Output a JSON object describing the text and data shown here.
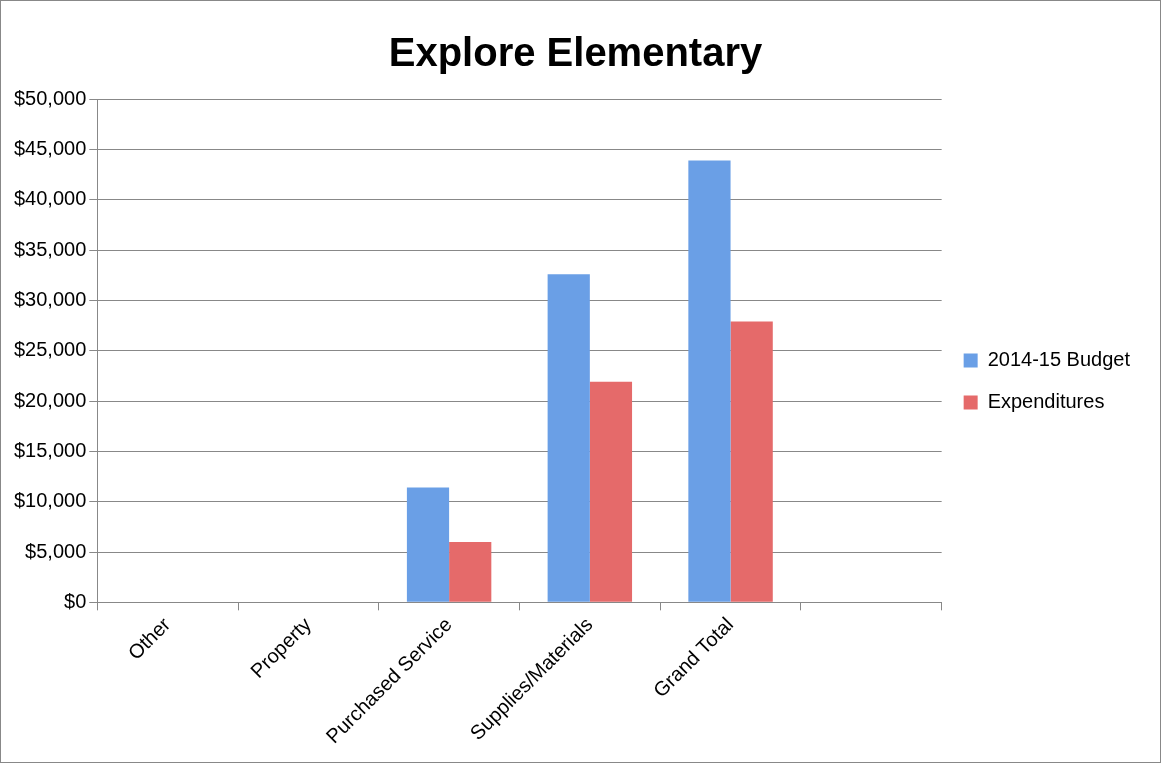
{
  "chart_data": {
    "type": "bar",
    "title": "Explore Elementary",
    "categories": [
      "Other",
      "Property",
      "Purchased Service",
      "Supplies/Materials",
      "Grand Total",
      null
    ],
    "series": [
      {
        "name": "2014-15 Budget",
        "color": "#6a9fe6",
        "values": [
          0,
          0,
          11400,
          32600,
          43900,
          null
        ]
      },
      {
        "name": "Expenditures",
        "color": "#e56a6a",
        "values": [
          0,
          0,
          6000,
          21900,
          27900,
          null
        ]
      }
    ],
    "ylim": [
      0,
      50000
    ],
    "yticks": [
      {
        "value": 0,
        "label": "$0"
      },
      {
        "value": 5000,
        "label": "$5,000"
      },
      {
        "value": 10000,
        "label": "$10,000"
      },
      {
        "value": 15000,
        "label": "$15,000"
      },
      {
        "value": 20000,
        "label": "$20,000"
      },
      {
        "value": 25000,
        "label": "$25,000"
      },
      {
        "value": 30000,
        "label": "$30,000"
      },
      {
        "value": 35000,
        "label": "$35,000"
      },
      {
        "value": 40000,
        "label": "$40,000"
      },
      {
        "value": 45000,
        "label": "$45,000"
      },
      {
        "value": 50000,
        "label": "$50,000"
      }
    ],
    "grid": "y",
    "legend": "right"
  }
}
